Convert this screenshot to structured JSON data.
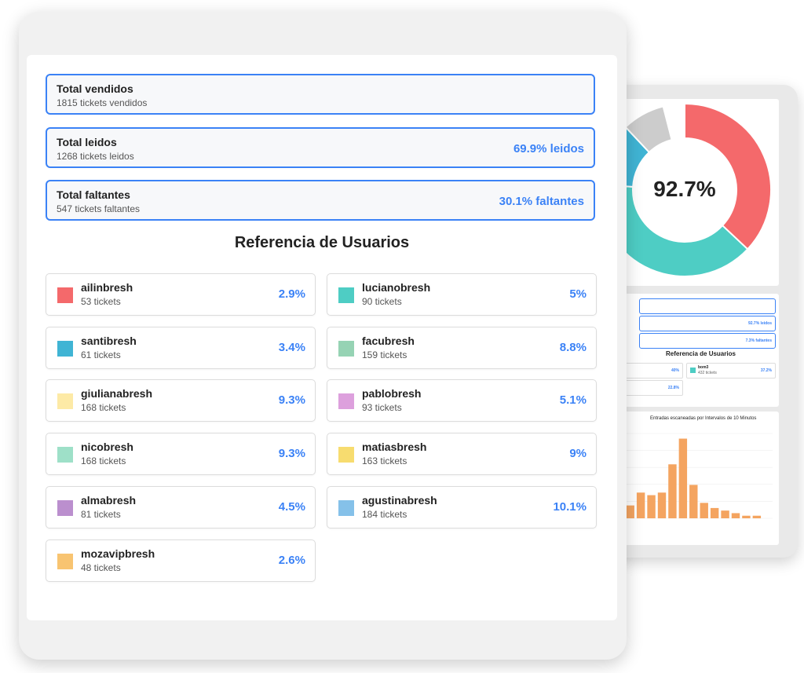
{
  "summary": [
    {
      "title": "Total vendidos",
      "subtitle": "1815 tickets vendidos",
      "percent": ""
    },
    {
      "title": "Total leidos",
      "subtitle": "1268 tickets leidos",
      "percent": "69.9% leidos"
    },
    {
      "title": "Total faltantes",
      "subtitle": "547 tickets faltantes",
      "percent": "30.1% faltantes"
    }
  ],
  "section_title": "Referencia de Usuarios",
  "users": [
    {
      "name": "ailinbresh",
      "tickets": "53 tickets",
      "percent": "2.9%",
      "color": "#f4696b"
    },
    {
      "name": "lucianobresh",
      "tickets": "90 tickets",
      "percent": "5%",
      "color": "#4ecdc4"
    },
    {
      "name": "santibresh",
      "tickets": "61 tickets",
      "percent": "3.4%",
      "color": "#40b4d4"
    },
    {
      "name": "facubresh",
      "tickets": "159 tickets",
      "percent": "8.8%",
      "color": "#96d3b4"
    },
    {
      "name": "giulianabresh",
      "tickets": "168 tickets",
      "percent": "9.3%",
      "color": "#fdeaa6"
    },
    {
      "name": "pablobresh",
      "tickets": "93 tickets",
      "percent": "5.1%",
      "color": "#dda0dd"
    },
    {
      "name": "nicobresh",
      "tickets": "168 tickets",
      "percent": "9.3%",
      "color": "#9ee0c8"
    },
    {
      "name": "matiasbresh",
      "tickets": "163 tickets",
      "percent": "9%",
      "color": "#f7dc6f"
    },
    {
      "name": "almabresh",
      "tickets": "81 tickets",
      "percent": "4.5%",
      "color": "#bb8fce"
    },
    {
      "name": "agustinabresh",
      "tickets": "184 tickets",
      "percent": "10.1%",
      "color": "#85c1e9"
    },
    {
      "name": "mozavipbresh",
      "tickets": "48 tickets",
      "percent": "2.6%",
      "color": "#f8c471"
    }
  ],
  "back": {
    "donut_label": "92.7%",
    "donut_colors": [
      "#f4696b",
      "#4ecdc4",
      "#40b4d4",
      "#cccccc"
    ],
    "rows": [
      "",
      "92.7% leidos",
      "7.3% faltantes"
    ],
    "mini_title": "Referencia de Usuarios",
    "mini_cards": [
      {
        "name": "",
        "tickets": "",
        "percent": "40%"
      },
      {
        "name": "bom3",
        "tickets": "432 tickets",
        "percent": "37.2%"
      },
      {
        "name": "",
        "tickets": "",
        "percent": "22.8%"
      }
    ],
    "hist_title": "Entradas escaneadas por Intervalos de 10 Minutos",
    "hist_values": [
      5,
      10,
      9,
      10,
      21,
      31,
      13,
      6,
      4,
      3,
      2,
      1,
      1,
      0
    ],
    "hist_color": "#f4a460"
  }
}
